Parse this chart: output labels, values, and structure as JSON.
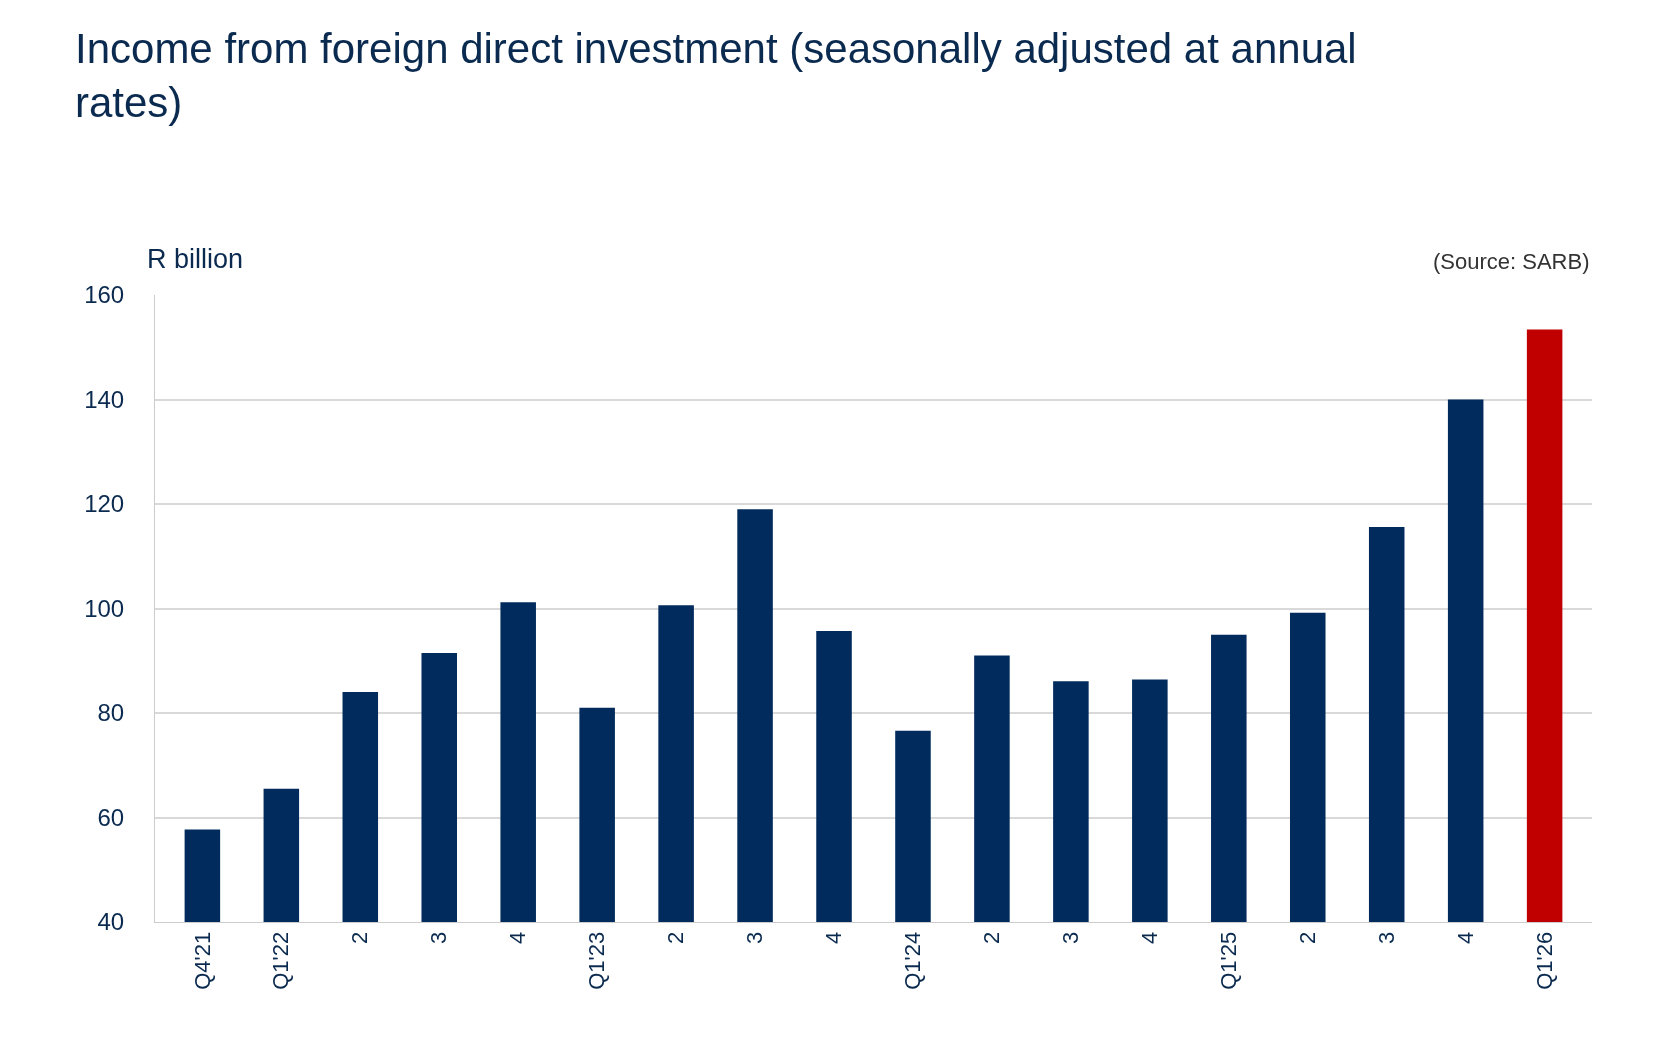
{
  "chart_data": {
    "type": "bar",
    "title": "Income from foreign direct investment (seasonally adjusted at annual rates)",
    "ylabel": "R billion",
    "annotations": [
      "(Source: SARB)"
    ],
    "categories": [
      "Q4'21",
      "Q1'22",
      "2",
      "3",
      "4",
      "Q1'23",
      "2",
      "3",
      "4",
      "Q1'24",
      "2",
      "3",
      "4",
      "Q1'25",
      "2",
      "3",
      "4",
      "Q1'26"
    ],
    "values": [
      57.7,
      65.5,
      84,
      91.5,
      101.2,
      81,
      100.6,
      119,
      95.7,
      76.6,
      91,
      86.1,
      86.4,
      95,
      99.2,
      115.6,
      140,
      153.4
    ],
    "colors": [
      "#002b5c",
      "#002b5c",
      "#002b5c",
      "#002b5c",
      "#002b5c",
      "#002b5c",
      "#002b5c",
      "#002b5c",
      "#002b5c",
      "#002b5c",
      "#002b5c",
      "#002b5c",
      "#002b5c",
      "#002b5c",
      "#002b5c",
      "#002b5c",
      "#002b5c",
      "#c00000"
    ],
    "ylim": [
      40,
      160
    ],
    "yticks": [
      40,
      60,
      80,
      100,
      120,
      140,
      160
    ],
    "grid": "y",
    "legend": false
  }
}
